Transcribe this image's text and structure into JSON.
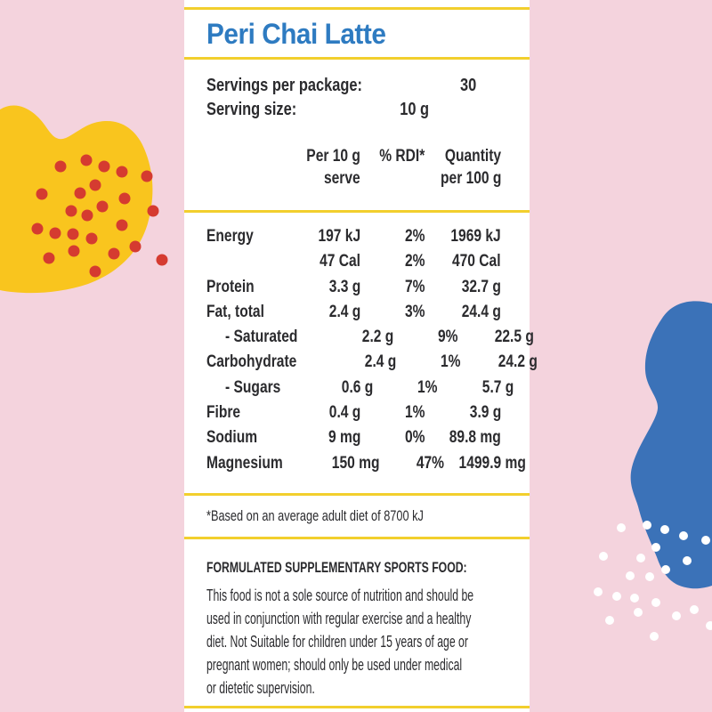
{
  "panel": {
    "title": "Peri Chai Latte",
    "servings": [
      {
        "label": "Servings per package:",
        "value": "30"
      },
      {
        "label": "Serving size:",
        "value": "10 g"
      }
    ],
    "table": {
      "headers": [
        {
          "line1": "Per 10 g",
          "line2": "serve"
        },
        {
          "line1": "% RDI*",
          "line2": ""
        },
        {
          "line1": "Quantity",
          "line2": "per 100 g"
        }
      ],
      "rows": [
        {
          "nutrient": "Energy",
          "indent": false,
          "per_serve": "197 kJ",
          "rdi": "2%",
          "per_100g": "1969 kJ"
        },
        {
          "nutrient": "",
          "indent": false,
          "per_serve": "47 Cal",
          "rdi": "2%",
          "per_100g": "470 Cal"
        },
        {
          "nutrient": "Protein",
          "indent": false,
          "per_serve": "3.3 g",
          "rdi": "7%",
          "per_100g": "32.7 g"
        },
        {
          "nutrient": "Fat, total",
          "indent": false,
          "per_serve": "2.4 g",
          "rdi": "3%",
          "per_100g": "24.4 g"
        },
        {
          "nutrient": "- Saturated",
          "indent": true,
          "per_serve": "2.2 g",
          "rdi": "9%",
          "per_100g": "22.5 g"
        },
        {
          "nutrient": "Carbohydrate",
          "indent": false,
          "per_serve": "2.4 g",
          "rdi": "1%",
          "per_100g": "24.2 g"
        },
        {
          "nutrient": "- Sugars",
          "indent": true,
          "per_serve": "0.6 g",
          "rdi": "1%",
          "per_100g": "5.7 g"
        },
        {
          "nutrient": "Fibre",
          "indent": false,
          "per_serve": "0.4 g",
          "rdi": "1%",
          "per_100g": "3.9 g"
        },
        {
          "nutrient": "Sodium",
          "indent": false,
          "per_serve": "9 mg",
          "rdi": "0%",
          "per_100g": "89.8 mg"
        },
        {
          "nutrient": "Magnesium",
          "indent": false,
          "per_serve": "150 mg",
          "rdi": "47%",
          "per_100g": "1499.9 mg"
        }
      ]
    },
    "footnote": "*Based on an average adult diet of 8700 kJ",
    "statement": {
      "heading": "FORMULATED SUPPLEMENTARY SPORTS FOOD:",
      "lines": [
        "This food is not a sole source of nutrition and should be",
        "used in conjunction with regular exercise and a healthy",
        "diet. Not Suitable for children under 15 years of age or",
        "pregnant women; should only be used under medical",
        "or dietetic supervision."
      ]
    }
  },
  "colors": {
    "background_pink": "#F4D3DD",
    "panel_white": "#FFFFFF",
    "rule_yellow": "#F2CF2D",
    "title_blue": "#2E7BC1",
    "text_dark": "#2B2B2E",
    "blob_yellow": "#F9C51E",
    "blob_blue": "#3B72B8",
    "dot_red": "#D53B30",
    "dot_white": "#FFFFFF"
  }
}
